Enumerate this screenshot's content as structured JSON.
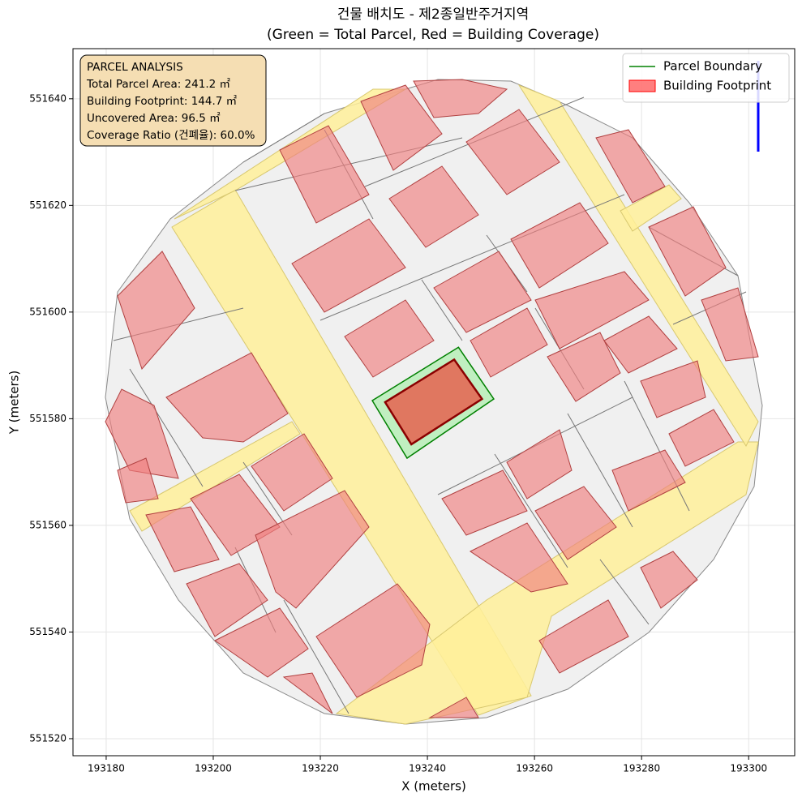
{
  "chart_data": {
    "type": "polygon",
    "title": "건물 배치도 - 제2종일반주거지역",
    "subtitle": "(Green = Total Parcel, Red = Building Coverage)",
    "xlabel": "X (meters)",
    "ylabel": "Y (meters)",
    "xlim": [
      193173.8,
      193308.6
    ],
    "ylim": [
      551516.8,
      551649.4
    ],
    "xticks": [
      193180,
      193200,
      193220,
      193240,
      193260,
      193280,
      193300
    ],
    "yticks": [
      551520,
      551540,
      551560,
      551580,
      551600,
      551620,
      551640
    ],
    "grid": true,
    "legend": "upper right",
    "series": [
      {
        "name": "Parcel Boundary",
        "color": "#008000",
        "fill": "#90ee90",
        "x": [
          193229.7,
          193245.8,
          193252.4,
          193236.2
        ],
        "y": [
          551583.4,
          551593.4,
          551583.7,
          551572.6
        ]
      },
      {
        "name": "Building Footprint",
        "color": "#ff0000",
        "fill": "#ff0000",
        "edgecolor": "#8b0000",
        "x": [
          193232.1,
          193245.0,
          193250.2,
          193237.0
        ],
        "y": [
          551583.1,
          551591.1,
          551583.7,
          551575.2
        ]
      }
    ],
    "annotation": [
      "PARCEL ANALYSIS",
      "Total Parcel Area: 241.2 ㎡",
      "Building Footprint: 144.7 ㎡",
      "Uncovered Area: 96.5 ㎡",
      "Coverage Ratio (건폐율): 60.0%"
    ]
  }
}
